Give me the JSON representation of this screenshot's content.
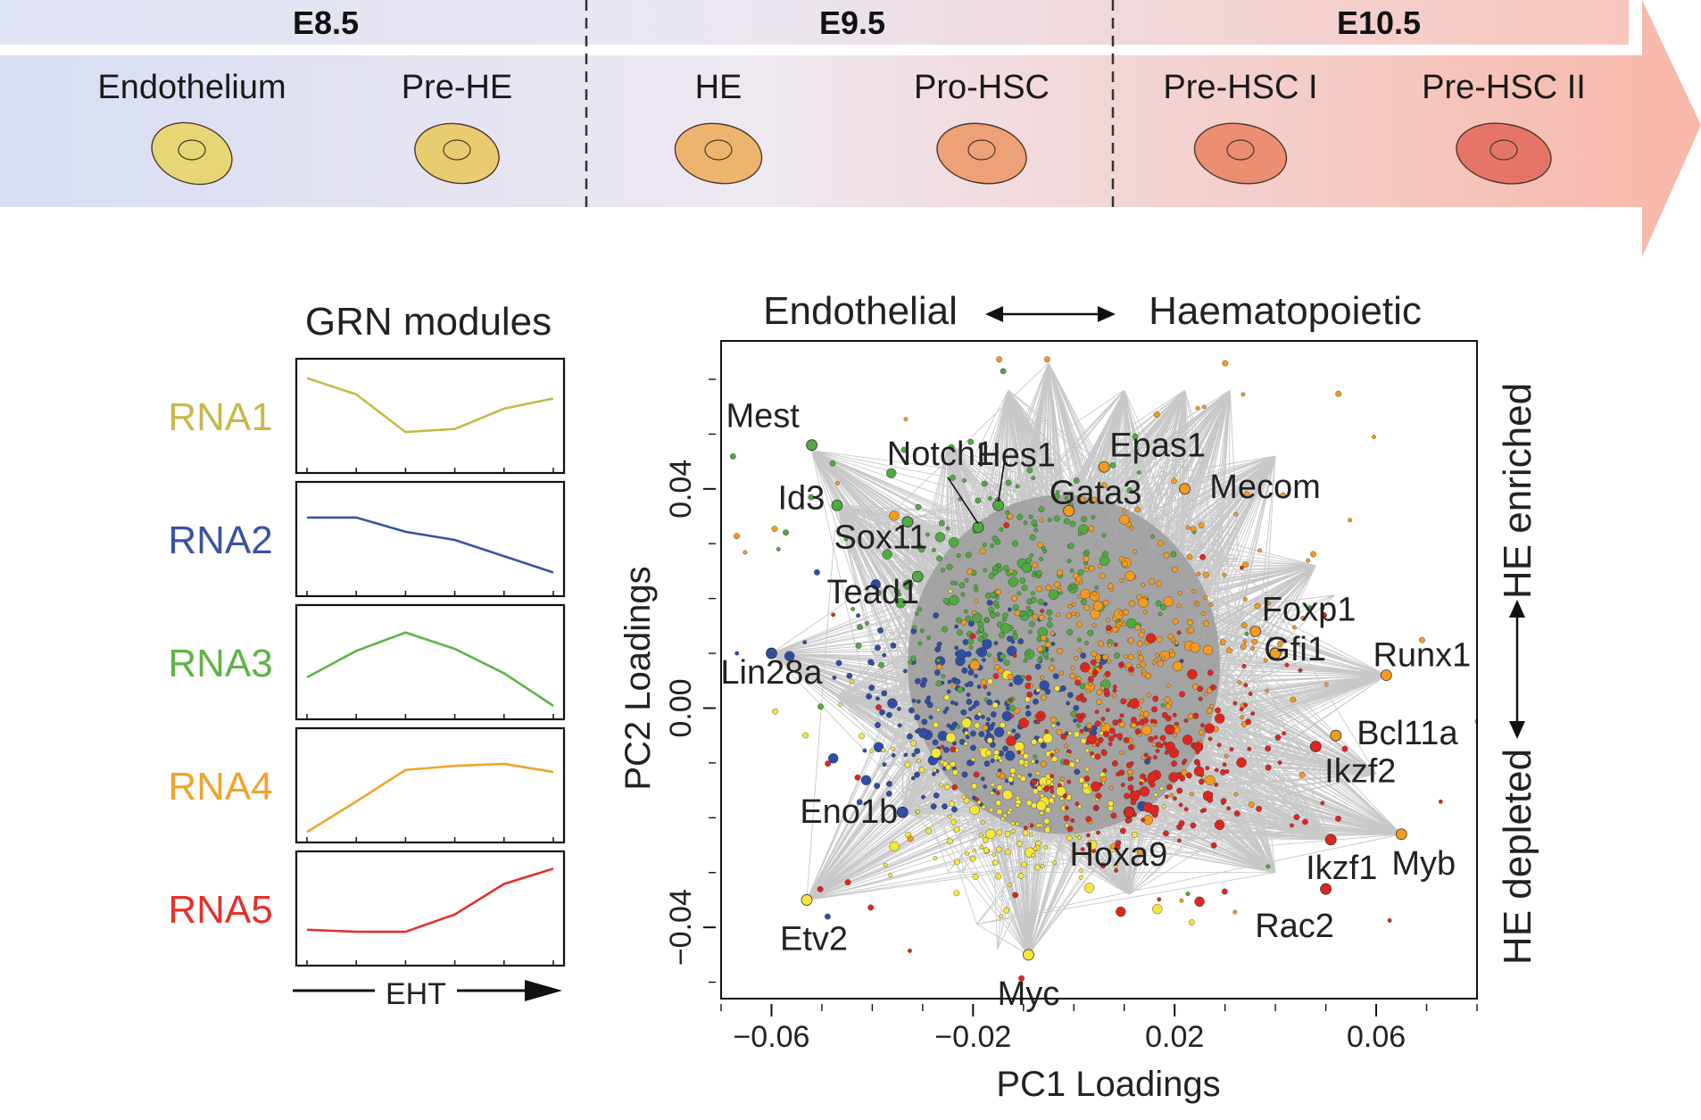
{
  "timeline": {
    "stages": [
      {
        "label": "E8.5",
        "color": "#d9def1"
      },
      {
        "label": "E9.5",
        "color": "#e9e4f0"
      },
      {
        "label": "E10.5",
        "color": "#f8c8c0"
      }
    ],
    "cell_types": [
      {
        "label": "Endothelium",
        "fill": "#e6d676"
      },
      {
        "label": "Pre-HE",
        "fill": "#e9cc72"
      },
      {
        "label": "HE",
        "fill": "#edb46e"
      },
      {
        "label": "Pro-HSC",
        "fill": "#eea076"
      },
      {
        "label": "Pre-HSC I",
        "fill": "#eb8e72"
      },
      {
        "label": "Pre-HSC II",
        "fill": "#e77468"
      }
    ]
  },
  "modules": {
    "title": "GRN modules",
    "x_label": "EHT",
    "items": [
      {
        "label": "RNA1",
        "color": "#c7b94a",
        "values": [
          0.88,
          0.72,
          0.35,
          0.38,
          0.58,
          0.68
        ]
      },
      {
        "label": "RNA2",
        "color": "#3953a4",
        "values": [
          0.72,
          0.72,
          0.58,
          0.5,
          0.34,
          0.18
        ]
      },
      {
        "label": "RNA3",
        "color": "#5fb346",
        "values": [
          0.36,
          0.62,
          0.8,
          0.64,
          0.4,
          0.08
        ]
      },
      {
        "label": "RNA4",
        "color": "#f0a32c",
        "values": [
          0.05,
          0.35,
          0.66,
          0.7,
          0.72,
          0.64
        ]
      },
      {
        "label": "RNA5",
        "color": "#e2332a",
        "values": [
          0.3,
          0.28,
          0.28,
          0.45,
          0.75,
          0.9
        ]
      }
    ]
  },
  "scatter": {
    "top_left_label": "Endothelial",
    "top_right_label": "Haematopoietic",
    "right_top_label": "HE enriched",
    "right_bottom_label": "HE depleted",
    "xlabel": "PC1 Loadings",
    "ylabel": "PC2 Loadings"
  },
  "chart_data": {
    "type": "scatter",
    "xlabel": "PC1 Loadings",
    "ylabel": "PC2 Loadings",
    "xlim": [
      -0.07,
      0.08
    ],
    "ylim": [
      -0.053,
      0.067
    ],
    "xticks": [
      -0.06,
      -0.02,
      0.02,
      0.06
    ],
    "xtick_labels": [
      "−0.06",
      "−0.02",
      "0.02",
      "0.06"
    ],
    "yticks": [
      -0.04,
      0.0,
      0.04
    ],
    "ytick_labels": [
      "−0.04",
      "0.00",
      "0.04"
    ],
    "series_colors": {
      "RNA1": "#f5e63a",
      "RNA2": "#2f4ea3",
      "RNA3": "#4faa3f",
      "RNA4": "#f39b1e",
      "RNA5": "#e0251f"
    },
    "labeled_genes": [
      {
        "name": "Mest",
        "module": "RNA3",
        "x": -0.052,
        "y": 0.048
      },
      {
        "name": "Hes1",
        "module": "RNA3",
        "x": -0.015,
        "y": 0.037
      },
      {
        "name": "Notch1",
        "module": "RNA3",
        "x": -0.019,
        "y": 0.033
      },
      {
        "name": "Epas1",
        "module": "RNA4",
        "x": 0.006,
        "y": 0.044
      },
      {
        "name": "Id3",
        "module": "RNA3",
        "x": -0.047,
        "y": 0.037
      },
      {
        "name": "Gata3",
        "module": "RNA4",
        "x": -0.001,
        "y": 0.036
      },
      {
        "name": "Mecom",
        "module": "RNA4",
        "x": 0.022,
        "y": 0.04
      },
      {
        "name": "Sox11",
        "module": "RNA3",
        "x": -0.033,
        "y": 0.034
      },
      {
        "name": "Tead1",
        "module": "RNA3",
        "x": -0.031,
        "y": 0.024
      },
      {
        "name": "Foxp1",
        "module": "RNA4",
        "x": 0.036,
        "y": 0.014
      },
      {
        "name": "Gfi1",
        "module": "RNA4",
        "x": 0.04,
        "y": 0.01
      },
      {
        "name": "Runx1",
        "module": "RNA4",
        "x": 0.062,
        "y": 0.006
      },
      {
        "name": "Lin28a",
        "module": "RNA2",
        "x": -0.06,
        "y": 0.01
      },
      {
        "name": "Bcl11a",
        "module": "RNA4",
        "x": 0.052,
        "y": -0.005
      },
      {
        "name": "Ikzf2",
        "module": "RNA5",
        "x": 0.048,
        "y": -0.007
      },
      {
        "name": "Eno1b",
        "module": "RNA2",
        "x": -0.034,
        "y": -0.019
      },
      {
        "name": "Hoxa9",
        "module": "RNA5",
        "x": 0.011,
        "y": -0.019
      },
      {
        "name": "Ikzf1",
        "module": "RNA5",
        "x": 0.051,
        "y": -0.024
      },
      {
        "name": "Myb",
        "module": "RNA4",
        "x": 0.065,
        "y": -0.023
      },
      {
        "name": "Rac2",
        "module": "RNA5",
        "x": 0.05,
        "y": -0.033
      },
      {
        "name": "Etv2",
        "module": "RNA1",
        "x": -0.053,
        "y": -0.035
      },
      {
        "name": "Myc",
        "module": "RNA1",
        "x": -0.009,
        "y": -0.045
      }
    ]
  }
}
